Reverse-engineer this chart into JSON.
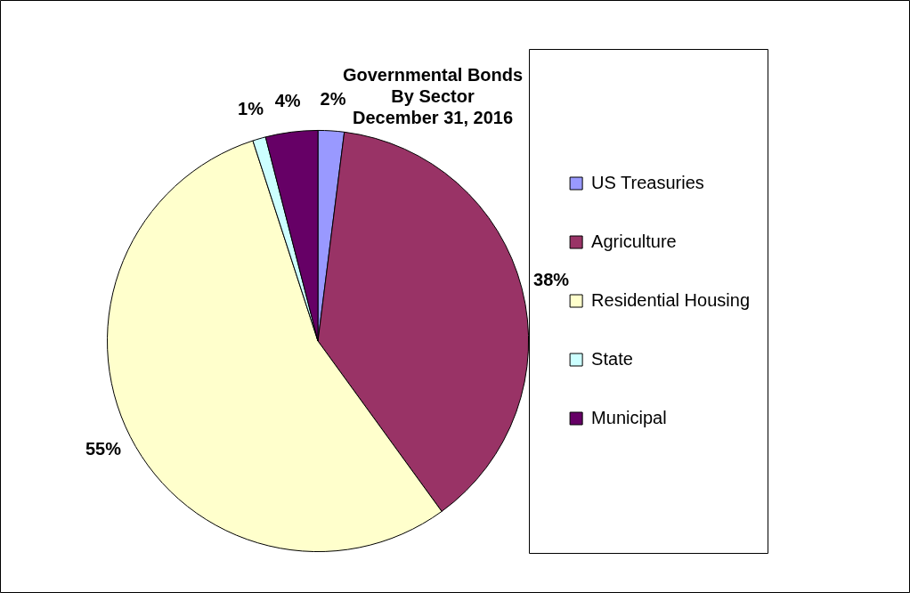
{
  "chart_data": {
    "type": "pie",
    "title": "Governmental Bonds\nBy Sector\nDecember 31, 2016",
    "categories": [
      "US Treasuries",
      "Agriculture",
      "Residential Housing",
      "State",
      "Municipal"
    ],
    "values": [
      2,
      38,
      55,
      1,
      4
    ],
    "colors": [
      "#9999ff",
      "#993366",
      "#ffffcc",
      "#ccffff",
      "#660066"
    ],
    "value_labels": [
      "2%",
      "38%",
      "55%",
      "1%",
      "4%"
    ],
    "legend": "right"
  }
}
